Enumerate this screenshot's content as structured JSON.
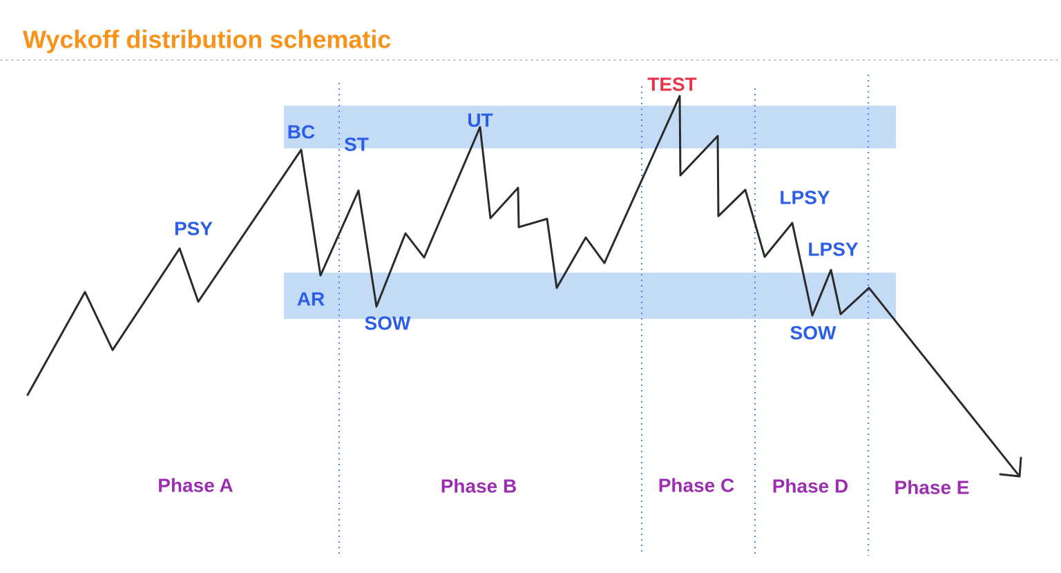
{
  "title": "Wyckoff distribution schematic",
  "labels": [
    "PSY",
    "BC",
    "AR",
    "ST",
    "SOW",
    "UT",
    "TEST",
    "LPSY",
    "LPSY",
    "SOW"
  ],
  "phases": [
    "Phase A",
    "Phase B",
    "Phase C",
    "Phase D",
    "Phase E"
  ]
}
